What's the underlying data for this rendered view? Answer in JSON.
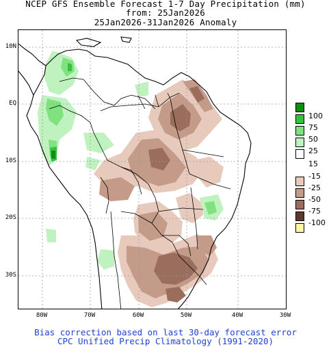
{
  "title": {
    "line1": "NCEP GFS Ensemble Forecast 1-7 Day Precipitation (mm)",
    "line2": "from: 25Jan2026",
    "line3": "25Jan2026-31Jan2026 Anomaly"
  },
  "lat_ticks": [
    "10N",
    "EQ",
    "10S",
    "20S",
    "30S"
  ],
  "lon_ticks": [
    "80W",
    "70W",
    "60W",
    "50W",
    "40W",
    "30W"
  ],
  "legend": [
    {
      "label": "100",
      "color": "#0f8c14"
    },
    {
      "label": "75",
      "color": "#35c240"
    },
    {
      "label": "50",
      "color": "#7fe27f"
    },
    {
      "label": "25",
      "color": "#c0f2bf"
    },
    {
      "label": "15",
      "color": "#ffffff"
    },
    {
      "label": "-15",
      "color": "#e7cabc"
    },
    {
      "label": "-25",
      "color": "#c49a88"
    },
    {
      "label": "-50",
      "color": "#9a6d5c"
    },
    {
      "label": "-75",
      "color": "#5c3a2a"
    },
    {
      "label": "-100",
      "color": "#fff5a8"
    }
  ],
  "footer": {
    "line1": "Bias correction based on last 30-day forecast error",
    "line2": "CPC Unified Precip Climatology (1991-2020)"
  },
  "colors": {
    "footer_text": "#1f3fd6",
    "coastline": "#000000",
    "grid": "#9a9a9a"
  }
}
